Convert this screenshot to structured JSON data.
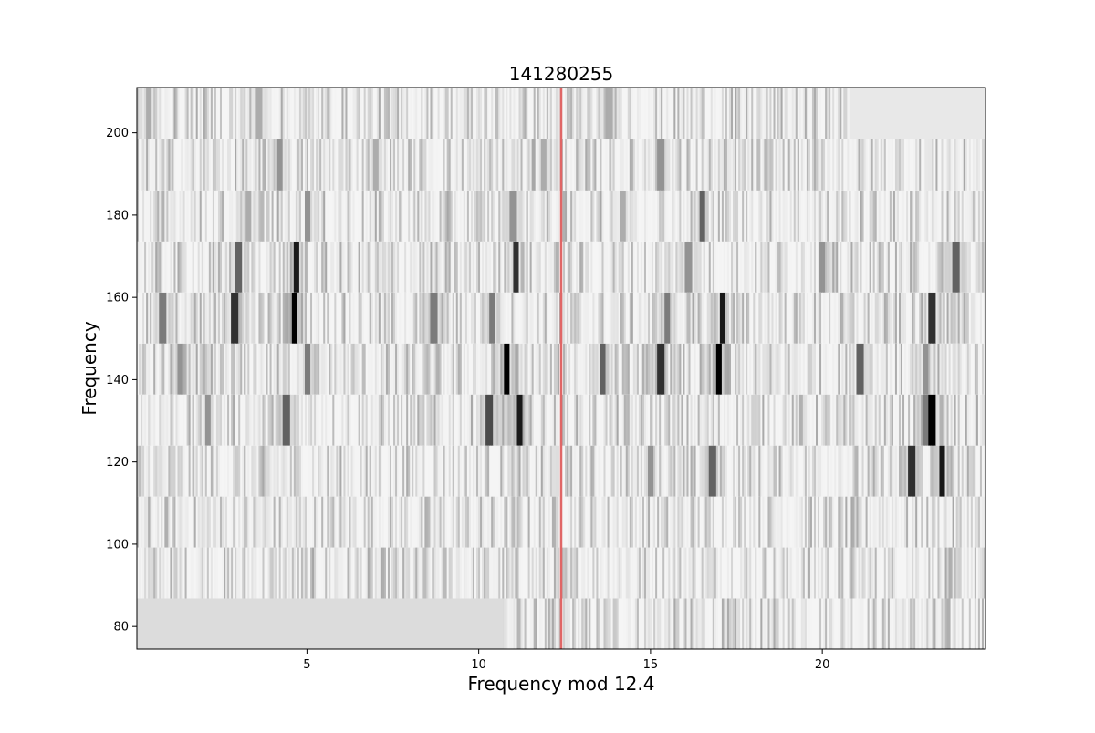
{
  "chart_data": {
    "type": "heatmap",
    "title": "141280255",
    "xlabel": "Frequency mod 12.4",
    "ylabel": "Frequency",
    "xlim": [
      0.05,
      24.75
    ],
    "ylim": [
      74.5,
      211
    ],
    "x_ticks": [
      5,
      10,
      15,
      20
    ],
    "y_ticks": [
      80,
      100,
      120,
      140,
      160,
      180,
      200
    ],
    "grid": false,
    "colormap": "gray_r",
    "row_height": 12.4,
    "marker_line": {
      "x": 12.4,
      "color": "#e06666"
    },
    "empty_regions": [
      {
        "row_start": 74.4,
        "x_from": 0.05,
        "x_to": 10.7,
        "color": "#dcdcdc"
      },
      {
        "row_start": 198.4,
        "x_from": 20.8,
        "x_to": 24.75,
        "color": "#e8e8e8"
      }
    ],
    "rows": [
      {
        "start": 74.4,
        "peaks": []
      },
      {
        "start": 86.8,
        "peaks": []
      },
      {
        "start": 99.2,
        "peaks": []
      },
      {
        "start": 111.6,
        "peaks": [
          [
            22.6,
            0.8
          ],
          [
            23.5,
            0.9
          ],
          [
            16.8,
            0.6
          ],
          [
            15.0,
            0.4
          ]
        ]
      },
      {
        "start": 124.0,
        "peaks": [
          [
            23.2,
            1.0
          ],
          [
            11.2,
            0.9
          ],
          [
            10.3,
            0.7
          ],
          [
            2.1,
            0.4
          ],
          [
            4.4,
            0.6
          ],
          [
            23.0,
            0.5
          ]
        ]
      },
      {
        "start": 136.4,
        "peaks": [
          [
            17.0,
            1.0
          ],
          [
            10.8,
            1.0
          ],
          [
            15.3,
            0.8
          ],
          [
            1.3,
            0.4
          ],
          [
            5.0,
            0.5
          ],
          [
            13.6,
            0.6
          ],
          [
            21.1,
            0.6
          ],
          [
            23.0,
            0.4
          ]
        ]
      },
      {
        "start": 148.8,
        "peaks": [
          [
            4.65,
            1.0
          ],
          [
            17.1,
            0.9
          ],
          [
            2.9,
            0.8
          ],
          [
            23.2,
            0.8
          ],
          [
            0.8,
            0.5
          ],
          [
            8.7,
            0.5
          ],
          [
            10.4,
            0.5
          ],
          [
            15.5,
            0.5
          ]
        ]
      },
      {
        "start": 161.2,
        "peaks": [
          [
            4.7,
            0.9
          ],
          [
            11.1,
            0.8
          ],
          [
            3.0,
            0.6
          ],
          [
            23.9,
            0.6
          ],
          [
            16.1,
            0.4
          ],
          [
            20.0,
            0.4
          ]
        ]
      },
      {
        "start": 173.6,
        "peaks": [
          [
            16.5,
            0.6
          ],
          [
            5.0,
            0.4
          ],
          [
            11.0,
            0.4
          ],
          [
            3.3,
            0.3
          ],
          [
            14.2,
            0.3
          ]
        ]
      },
      {
        "start": 186.0,
        "peaks": [
          [
            4.2,
            0.4
          ],
          [
            15.3,
            0.4
          ],
          [
            11.9,
            0.3
          ],
          [
            7.0,
            0.3
          ]
        ]
      },
      {
        "start": 198.4,
        "peaks": [
          [
            0.4,
            0.3
          ],
          [
            3.6,
            0.3
          ],
          [
            13.8,
            0.3
          ]
        ]
      }
    ]
  }
}
